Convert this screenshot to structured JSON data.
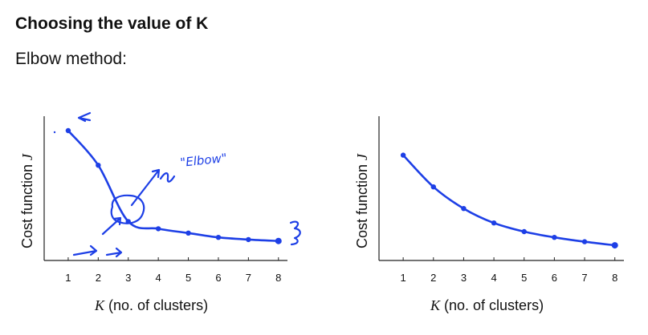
{
  "page": {
    "title": "Choosing the value of K",
    "subtitle": "Elbow method:"
  },
  "colors": {
    "ink": "#1d3fe6",
    "axis": "#222222"
  },
  "chart_data": [
    {
      "type": "line",
      "x": [
        1,
        2,
        3,
        4,
        5,
        6,
        7,
        8
      ],
      "series": [
        {
          "values": [
            9.0,
            6.6,
            2.7,
            2.2,
            1.9,
            1.6,
            1.45,
            1.35
          ]
        }
      ],
      "xlabel_var": "K",
      "xlabel_rest": " (no. of clusters)",
      "ylabel_text": "Cost function ",
      "ylabel_var": "J",
      "xticks": [
        "1",
        "2",
        "3",
        "4",
        "5",
        "6",
        "7",
        "8"
      ],
      "xlim": [
        0.2,
        8.3
      ],
      "ylim": [
        0,
        10
      ],
      "grid": false,
      "annotations": {
        "elbow_label": "\"Elbow\""
      }
    },
    {
      "type": "line",
      "x": [
        1,
        2,
        3,
        4,
        5,
        6,
        7,
        8
      ],
      "series": [
        {
          "values": [
            7.3,
            5.1,
            3.6,
            2.6,
            2.0,
            1.6,
            1.3,
            1.05
          ]
        }
      ],
      "xlabel_var": "K",
      "xlabel_rest": " (no. of clusters)",
      "ylabel_text": "Cost function ",
      "ylabel_var": "J",
      "xticks": [
        "1",
        "2",
        "3",
        "4",
        "5",
        "6",
        "7",
        "8"
      ],
      "xlim": [
        0.2,
        8.3
      ],
      "ylim": [
        0,
        10
      ],
      "grid": false
    }
  ]
}
